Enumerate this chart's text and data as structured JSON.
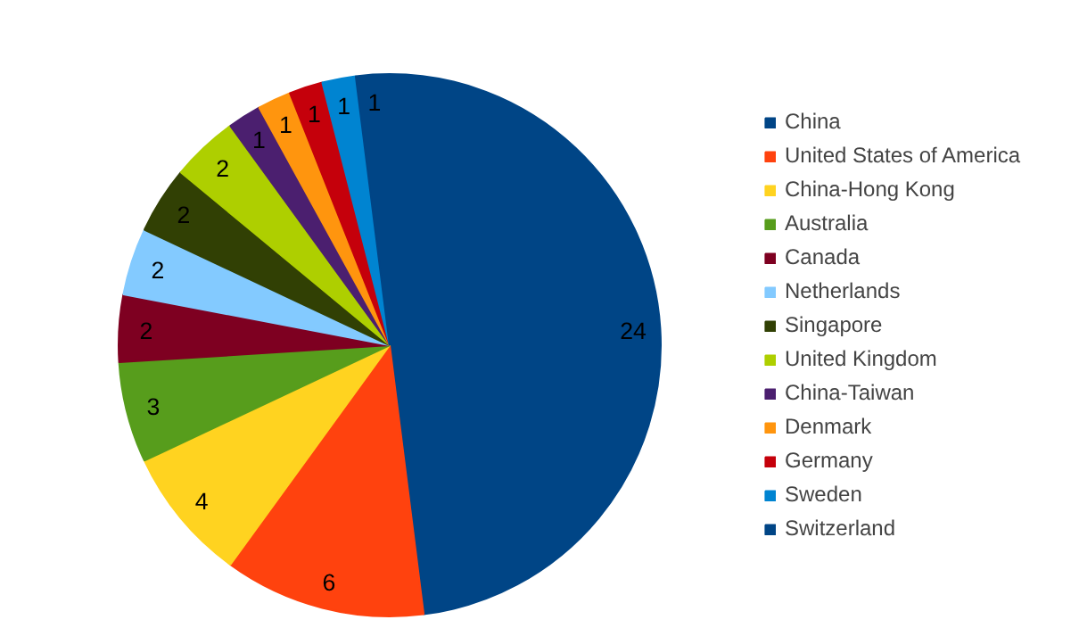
{
  "chart_data": {
    "type": "pie",
    "categories": [
      "China",
      "United States of America",
      "China-Hong Kong",
      "Australia",
      "Canada",
      "Netherlands",
      "Singapore",
      "United Kingdom",
      "China-Taiwan",
      "Denmark",
      "Germany",
      "Sweden",
      "Switzerland"
    ],
    "values": [
      24,
      6,
      4,
      3,
      2,
      2,
      2,
      2,
      1,
      1,
      1,
      1,
      1
    ],
    "colors": [
      "#004586",
      "#ff420e",
      "#ffd320",
      "#579d1c",
      "#7e0021",
      "#83caff",
      "#314004",
      "#aecf00",
      "#4b1f6f",
      "#ff950e",
      "#c5000b",
      "#0084d1",
      "#004586"
    ],
    "data_labels": true,
    "legend": "right"
  }
}
